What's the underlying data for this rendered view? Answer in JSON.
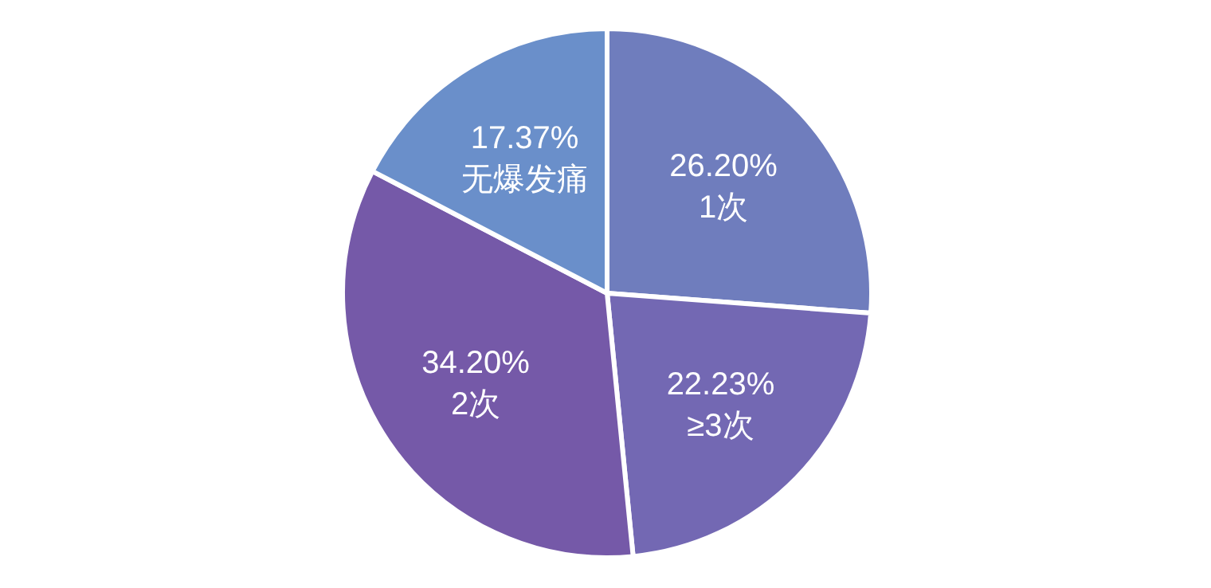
{
  "chart_data": {
    "type": "pie",
    "categories": [
      "1次",
      "≥3次",
      "2次",
      "无爆发痛"
    ],
    "values": [
      26.2,
      22.23,
      34.2,
      17.37
    ],
    "value_labels": [
      "26.20%",
      "22.23%",
      "34.20%",
      "17.37%"
    ],
    "colors": [
      "#6f7dbd",
      "#7368b3",
      "#7559a8",
      "#6a8fca"
    ]
  }
}
